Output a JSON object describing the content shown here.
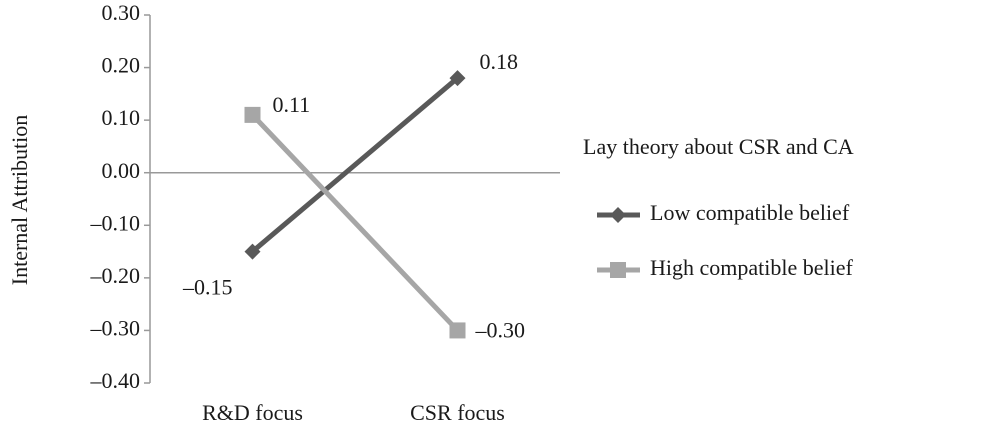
{
  "chart_data": {
    "type": "line",
    "y_label": "Internal Attribution",
    "categories": [
      "R&D focus",
      "CSR focus"
    ],
    "series": [
      {
        "name": "Low compatible belief",
        "color": "#595959",
        "marker": "diamond",
        "values": [
          -0.15,
          0.18
        ],
        "value_labels": [
          "–0.15",
          "0.18"
        ]
      },
      {
        "name": "High compatible belief",
        "color": "#a6a6a6",
        "marker": "square",
        "values": [
          0.11,
          -0.3
        ],
        "value_labels": [
          "0.11",
          "–0.30"
        ]
      }
    ],
    "legend_title": "Lay theory about CSR and CA",
    "legend": "right",
    "ylim": [
      -0.4,
      0.3
    ],
    "yticks": [
      {
        "value": 0.3,
        "label": "0.30"
      },
      {
        "value": 0.2,
        "label": "0.20"
      },
      {
        "value": 0.1,
        "label": "0.10"
      },
      {
        "value": 0,
        "label": "0.00"
      },
      {
        "value": -0.1,
        "label": "–0.10"
      },
      {
        "value": -0.2,
        "label": "–0.20"
      },
      {
        "value": -0.3,
        "label": "–0.30"
      },
      {
        "value": -0.4,
        "label": "–0.40"
      }
    ],
    "grid": false
  }
}
